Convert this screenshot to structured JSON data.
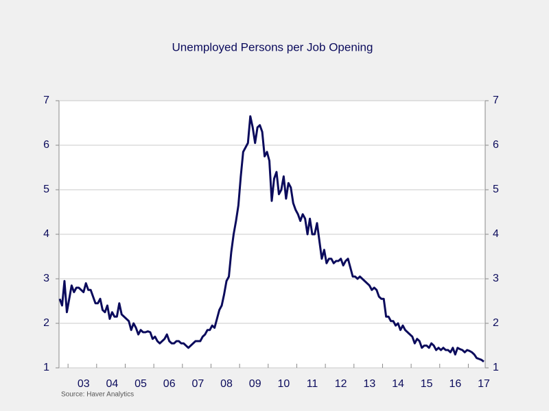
{
  "chart_data": {
    "type": "line",
    "title": "Unemployed Persons per Job Opening",
    "source": "Source:  Haver Analytics",
    "categories": [
      null,
      null,
      null,
      null,
      null,
      null,
      null,
      null,
      null,
      null,
      "03",
      null,
      null,
      null,
      null,
      null,
      null,
      null,
      null,
      null,
      null,
      null,
      "04",
      null,
      null,
      null,
      null,
      null,
      null,
      null,
      null,
      null,
      null,
      null,
      "05",
      null,
      null,
      null,
      null,
      null,
      null,
      null,
      null,
      null,
      null,
      null,
      "06",
      null,
      null,
      null,
      null,
      null,
      null,
      null,
      null,
      null,
      null,
      null,
      "07",
      null,
      null,
      null,
      null,
      null,
      null,
      null,
      null,
      null,
      null,
      null,
      "08",
      null,
      null,
      null,
      null,
      null,
      null,
      null,
      null,
      null,
      null,
      null,
      "09",
      null,
      null,
      null,
      null,
      null,
      null,
      null,
      null,
      null,
      null,
      null,
      "10",
      null,
      null,
      null,
      null,
      null,
      null,
      null,
      null,
      null,
      null,
      null,
      "11",
      null,
      null,
      null,
      null,
      null,
      null,
      null,
      null,
      null,
      null,
      null,
      "12",
      null,
      null,
      null,
      null,
      null,
      null,
      null,
      null,
      null,
      null,
      null,
      "13",
      null,
      null,
      null,
      null,
      null,
      null,
      null,
      null,
      null,
      null,
      null,
      "14",
      null,
      null,
      null,
      null,
      null,
      null,
      null,
      null,
      null,
      null,
      null,
      "15",
      null,
      null,
      null,
      null,
      null,
      null,
      null,
      null,
      null,
      null,
      null,
      "16",
      null,
      null,
      null,
      null,
      null,
      null,
      null,
      null,
      null,
      null,
      null,
      "17"
    ],
    "series": [
      {
        "name": "Unemployed Persons per Job Opening",
        "color": "#0b0b5c",
        "values": [
          2.55,
          2.4,
          2.95,
          2.25,
          2.55,
          2.85,
          2.7,
          2.8,
          2.8,
          2.75,
          2.7,
          2.9,
          2.75,
          2.75,
          2.6,
          2.45,
          2.45,
          2.55,
          2.3,
          2.25,
          2.4,
          2.1,
          2.25,
          2.15,
          2.15,
          2.45,
          2.2,
          2.15,
          2.1,
          2.05,
          1.85,
          2.0,
          1.9,
          1.75,
          1.85,
          1.8,
          1.8,
          1.82,
          1.8,
          1.65,
          1.7,
          1.6,
          1.55,
          1.6,
          1.65,
          1.75,
          1.6,
          1.55,
          1.55,
          1.6,
          1.6,
          1.55,
          1.55,
          1.5,
          1.45,
          1.5,
          1.55,
          1.6,
          1.6,
          1.6,
          1.7,
          1.75,
          1.85,
          1.85,
          1.95,
          1.9,
          2.1,
          2.3,
          2.4,
          2.65,
          2.95,
          3.05,
          3.6,
          4.0,
          4.3,
          4.65,
          5.3,
          5.85,
          5.95,
          6.05,
          6.65,
          6.4,
          6.05,
          6.4,
          6.45,
          6.3,
          5.75,
          5.85,
          5.65,
          4.75,
          5.25,
          5.4,
          4.9,
          5.0,
          5.3,
          4.8,
          5.15,
          5.05,
          4.7,
          4.55,
          4.45,
          4.3,
          4.45,
          4.35,
          4.0,
          4.35,
          4.0,
          4.0,
          4.25,
          3.85,
          3.45,
          3.65,
          3.35,
          3.45,
          3.45,
          3.35,
          3.4,
          3.4,
          3.45,
          3.3,
          3.4,
          3.45,
          3.25,
          3.05,
          3.05,
          3.0,
          3.05,
          3.0,
          2.95,
          2.9,
          2.85,
          2.75,
          2.8,
          2.75,
          2.6,
          2.55,
          2.55,
          2.15,
          2.15,
          2.05,
          2.05,
          1.95,
          2.0,
          1.85,
          1.95,
          1.85,
          1.8,
          1.75,
          1.7,
          1.55,
          1.65,
          1.6,
          1.45,
          1.5,
          1.5,
          1.45,
          1.55,
          1.5,
          1.4,
          1.45,
          1.4,
          1.45,
          1.4,
          1.4,
          1.35,
          1.45,
          1.3,
          1.45,
          1.42,
          1.4,
          1.35,
          1.4,
          1.38,
          1.35,
          1.3,
          1.22,
          1.2,
          1.18,
          1.14
        ]
      }
    ],
    "ylim": [
      1,
      7
    ],
    "yticks": [
      1,
      2,
      3,
      4,
      5,
      6,
      7
    ],
    "y2lim": [
      1,
      7
    ],
    "y2ticks": [
      1,
      2,
      3,
      4,
      5,
      6,
      7
    ],
    "grid": true
  }
}
